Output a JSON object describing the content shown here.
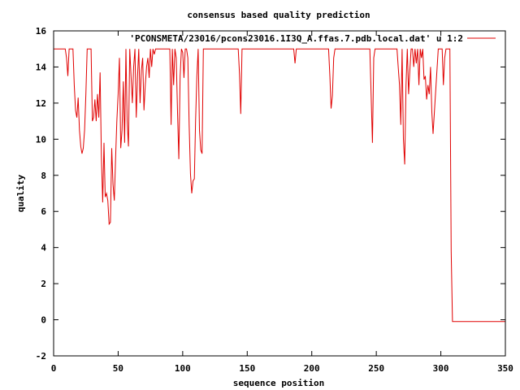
{
  "chart_data": {
    "type": "line",
    "title": "consensus based quality prediction",
    "xlabel": "sequence position",
    "ylabel": "quality",
    "xlim": [
      0,
      350
    ],
    "ylim": [
      -2,
      16
    ],
    "xticks": [
      0,
      50,
      100,
      150,
      200,
      250,
      300,
      350
    ],
    "yticks": [
      -2,
      0,
      2,
      4,
      6,
      8,
      10,
      12,
      14,
      16
    ],
    "legend_position": "top-right",
    "grid": false,
    "series": [
      {
        "name": "'PCONSMETA/23016/pcons23016.1I3Q_A.ffas.7.pdb.local.dat' u 1:2",
        "color": "#e00000",
        "x": [
          0,
          5,
          9,
          10,
          11,
          12,
          14,
          15,
          16,
          17,
          18,
          19,
          20,
          21,
          22,
          23,
          24,
          25,
          26,
          27,
          28,
          29,
          30,
          31,
          32,
          33,
          34,
          35,
          36,
          37,
          38,
          39,
          40,
          41,
          42,
          43,
          44,
          45,
          46,
          47,
          48,
          49,
          50,
          51,
          52,
          53,
          54,
          55,
          56,
          57,
          58,
          59,
          60,
          61,
          62,
          63,
          64,
          65,
          66,
          67,
          68,
          69,
          70,
          71,
          72,
          73,
          74,
          75,
          76,
          77,
          78,
          79,
          80,
          85,
          88,
          90,
          91,
          92,
          93,
          94,
          95,
          96,
          97,
          98,
          99,
          100,
          101,
          102,
          103,
          104,
          105,
          106,
          107,
          108,
          109,
          110,
          111,
          112,
          113,
          114,
          115,
          116,
          118,
          120,
          125,
          130,
          140,
          143,
          144,
          145,
          146,
          150,
          170,
          185,
          186,
          187,
          188,
          200,
          210,
          213,
          214,
          215,
          216,
          217,
          218,
          220,
          235,
          245,
          247,
          248,
          249,
          250,
          262,
          265,
          266,
          267,
          268,
          269,
          270,
          271,
          272,
          273,
          274,
          275,
          276,
          277,
          278,
          279,
          280,
          281,
          282,
          283,
          284,
          285,
          286,
          287,
          288,
          289,
          290,
          291,
          292,
          293,
          294,
          298,
          299,
          300,
          301,
          302,
          303,
          304,
          305,
          306,
          307,
          308,
          309,
          310,
          320,
          340,
          350
        ],
        "y": [
          15,
          15,
          15,
          14.5,
          13.5,
          15,
          15,
          15,
          13,
          11.6,
          11.2,
          12.3,
          10.5,
          9.6,
          9.2,
          9.5,
          10.5,
          12.5,
          15,
          15,
          15,
          15,
          11,
          11.2,
          12.2,
          11,
          12.5,
          11.2,
          13.7,
          9,
          6.5,
          9.8,
          6.8,
          7,
          6.6,
          5.3,
          5.4,
          9.5,
          7.5,
          6.6,
          9,
          11,
          12.5,
          14.5,
          9.5,
          10.5,
          13.2,
          9.8,
          15,
          11,
          9.6,
          15,
          13.5,
          12,
          14,
          15,
          11.2,
          13.5,
          15,
          12,
          13.8,
          14.5,
          11.6,
          13,
          14,
          14.5,
          13.4,
          15,
          14,
          15,
          14.7,
          15,
          15,
          15,
          15,
          15,
          10.8,
          15,
          13,
          15,
          14.5,
          11.5,
          8.9,
          13.5,
          15,
          14.8,
          13.4,
          15,
          15,
          14.5,
          10.8,
          8.1,
          7,
          7.7,
          7.8,
          11,
          13.5,
          15,
          10.5,
          9.4,
          9.2,
          15,
          15,
          15,
          15,
          15,
          15,
          15,
          13.6,
          11.4,
          15,
          15,
          15,
          15,
          15,
          14.2,
          15,
          15,
          15,
          15,
          13.5,
          11.7,
          12.4,
          14.5,
          15,
          15,
          15,
          15,
          9.8,
          14.5,
          15,
          15,
          15,
          15,
          15,
          14,
          13,
          10.8,
          15,
          10,
          8.6,
          13,
          15,
          12.5,
          13.8,
          15,
          15,
          14,
          15,
          14.2,
          15,
          13,
          15,
          14.5,
          15,
          13.3,
          13.5,
          12.2,
          13,
          12.5,
          14,
          11.5,
          10.3,
          15,
          15,
          15,
          15,
          13,
          14.5,
          15,
          15,
          15,
          15,
          3.8,
          -0.1,
          -0.1,
          -0.1,
          -0.1,
          -0.1
        ]
      }
    ]
  }
}
